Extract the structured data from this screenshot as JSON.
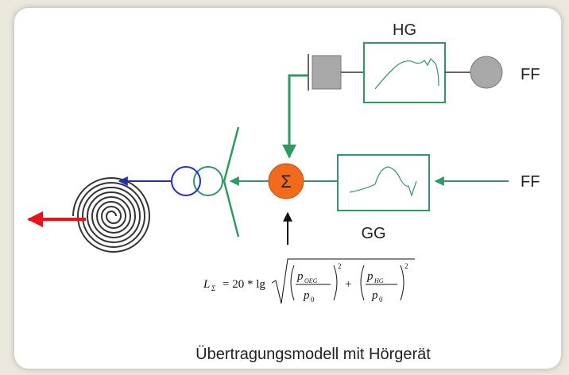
{
  "top_box": {
    "label": "HG"
  },
  "top_output": "FF",
  "bottom_input": "FF",
  "bottom_box": {
    "label": "GG"
  },
  "summer": "Σ",
  "formula": {
    "lhs": "L",
    "lhs_sub": "Σ",
    "eq": "= 20 * lg",
    "p": "p",
    "sub1": "OEG",
    "sub2": "HG",
    "ref": "0",
    "exp": "2",
    "plus": "+"
  },
  "caption": "Übertragungsmodell mit Hörgerät"
}
